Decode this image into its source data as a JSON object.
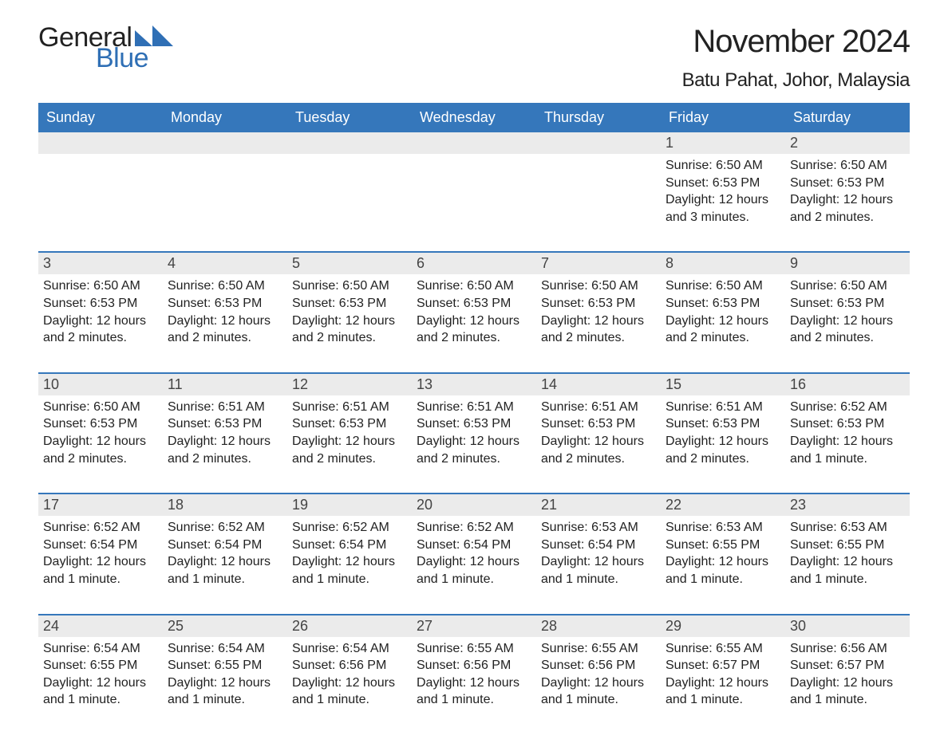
{
  "logo": {
    "word1": "General",
    "word2": "Blue",
    "tri_color": "#2f6fb5"
  },
  "header": {
    "title": "November 2024",
    "location": "Batu Pahat, Johor, Malaysia"
  },
  "colors": {
    "header_bg": "#3577bb",
    "header_text": "#ffffff",
    "row_divider": "#3577bb",
    "day_band_bg": "#ebebeb",
    "text": "#222222",
    "body_bg": "#ffffff"
  },
  "weekdays": [
    "Sunday",
    "Monday",
    "Tuesday",
    "Wednesday",
    "Thursday",
    "Friday",
    "Saturday"
  ],
  "weeks": [
    [
      {
        "blank": true
      },
      {
        "blank": true
      },
      {
        "blank": true
      },
      {
        "blank": true
      },
      {
        "blank": true
      },
      {
        "day": 1,
        "sunrise": "6:50 AM",
        "sunset": "6:53 PM",
        "daylight": "12 hours and 3 minutes."
      },
      {
        "day": 2,
        "sunrise": "6:50 AM",
        "sunset": "6:53 PM",
        "daylight": "12 hours and 2 minutes."
      }
    ],
    [
      {
        "day": 3,
        "sunrise": "6:50 AM",
        "sunset": "6:53 PM",
        "daylight": "12 hours and 2 minutes."
      },
      {
        "day": 4,
        "sunrise": "6:50 AM",
        "sunset": "6:53 PM",
        "daylight": "12 hours and 2 minutes."
      },
      {
        "day": 5,
        "sunrise": "6:50 AM",
        "sunset": "6:53 PM",
        "daylight": "12 hours and 2 minutes."
      },
      {
        "day": 6,
        "sunrise": "6:50 AM",
        "sunset": "6:53 PM",
        "daylight": "12 hours and 2 minutes."
      },
      {
        "day": 7,
        "sunrise": "6:50 AM",
        "sunset": "6:53 PM",
        "daylight": "12 hours and 2 minutes."
      },
      {
        "day": 8,
        "sunrise": "6:50 AM",
        "sunset": "6:53 PM",
        "daylight": "12 hours and 2 minutes."
      },
      {
        "day": 9,
        "sunrise": "6:50 AM",
        "sunset": "6:53 PM",
        "daylight": "12 hours and 2 minutes."
      }
    ],
    [
      {
        "day": 10,
        "sunrise": "6:50 AM",
        "sunset": "6:53 PM",
        "daylight": "12 hours and 2 minutes."
      },
      {
        "day": 11,
        "sunrise": "6:51 AM",
        "sunset": "6:53 PM",
        "daylight": "12 hours and 2 minutes."
      },
      {
        "day": 12,
        "sunrise": "6:51 AM",
        "sunset": "6:53 PM",
        "daylight": "12 hours and 2 minutes."
      },
      {
        "day": 13,
        "sunrise": "6:51 AM",
        "sunset": "6:53 PM",
        "daylight": "12 hours and 2 minutes."
      },
      {
        "day": 14,
        "sunrise": "6:51 AM",
        "sunset": "6:53 PM",
        "daylight": "12 hours and 2 minutes."
      },
      {
        "day": 15,
        "sunrise": "6:51 AM",
        "sunset": "6:53 PM",
        "daylight": "12 hours and 2 minutes."
      },
      {
        "day": 16,
        "sunrise": "6:52 AM",
        "sunset": "6:53 PM",
        "daylight": "12 hours and 1 minute."
      }
    ],
    [
      {
        "day": 17,
        "sunrise": "6:52 AM",
        "sunset": "6:54 PM",
        "daylight": "12 hours and 1 minute."
      },
      {
        "day": 18,
        "sunrise": "6:52 AM",
        "sunset": "6:54 PM",
        "daylight": "12 hours and 1 minute."
      },
      {
        "day": 19,
        "sunrise": "6:52 AM",
        "sunset": "6:54 PM",
        "daylight": "12 hours and 1 minute."
      },
      {
        "day": 20,
        "sunrise": "6:52 AM",
        "sunset": "6:54 PM",
        "daylight": "12 hours and 1 minute."
      },
      {
        "day": 21,
        "sunrise": "6:53 AM",
        "sunset": "6:54 PM",
        "daylight": "12 hours and 1 minute."
      },
      {
        "day": 22,
        "sunrise": "6:53 AM",
        "sunset": "6:55 PM",
        "daylight": "12 hours and 1 minute."
      },
      {
        "day": 23,
        "sunrise": "6:53 AM",
        "sunset": "6:55 PM",
        "daylight": "12 hours and 1 minute."
      }
    ],
    [
      {
        "day": 24,
        "sunrise": "6:54 AM",
        "sunset": "6:55 PM",
        "daylight": "12 hours and 1 minute."
      },
      {
        "day": 25,
        "sunrise": "6:54 AM",
        "sunset": "6:55 PM",
        "daylight": "12 hours and 1 minute."
      },
      {
        "day": 26,
        "sunrise": "6:54 AM",
        "sunset": "6:56 PM",
        "daylight": "12 hours and 1 minute."
      },
      {
        "day": 27,
        "sunrise": "6:55 AM",
        "sunset": "6:56 PM",
        "daylight": "12 hours and 1 minute."
      },
      {
        "day": 28,
        "sunrise": "6:55 AM",
        "sunset": "6:56 PM",
        "daylight": "12 hours and 1 minute."
      },
      {
        "day": 29,
        "sunrise": "6:55 AM",
        "sunset": "6:57 PM",
        "daylight": "12 hours and 1 minute."
      },
      {
        "day": 30,
        "sunrise": "6:56 AM",
        "sunset": "6:57 PM",
        "daylight": "12 hours and 1 minute."
      }
    ]
  ],
  "labels": {
    "sunrise_prefix": "Sunrise: ",
    "sunset_prefix": "Sunset: ",
    "daylight_prefix": "Daylight: "
  }
}
